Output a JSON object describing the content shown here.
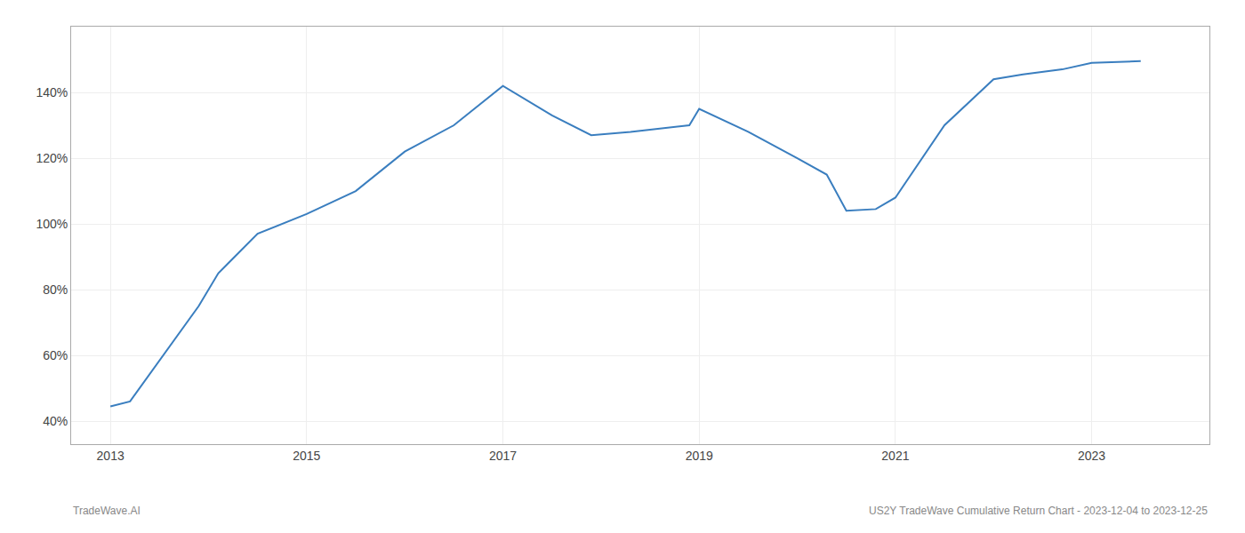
{
  "chart_data": {
    "type": "line",
    "x": [
      2013.0,
      2013.2,
      2013.9,
      2014.1,
      2014.5,
      2015.0,
      2015.5,
      2016.0,
      2016.5,
      2017.0,
      2017.5,
      2017.9,
      2018.3,
      2018.9,
      2019.0,
      2019.5,
      2020.0,
      2020.3,
      2020.5,
      2020.8,
      2021.0,
      2021.5,
      2022.0,
      2022.3,
      2022.7,
      2023.0,
      2023.5
    ],
    "values": [
      44.5,
      46,
      75,
      85,
      97,
      103,
      110,
      122,
      130,
      142,
      133,
      127,
      128,
      130,
      135,
      128,
      120,
      115,
      104,
      104.5,
      108,
      130,
      144,
      145.5,
      147,
      149,
      149.5
    ],
    "color": "#3a7ebf",
    "xlim": [
      2012.6,
      2024.2
    ],
    "ylim": [
      33,
      160
    ],
    "xticks": [
      2013,
      2015,
      2017,
      2019,
      2021,
      2023
    ],
    "yticks": [
      {
        "value": 40,
        "label": "40%"
      },
      {
        "value": 60,
        "label": "60%"
      },
      {
        "value": 80,
        "label": "80%"
      },
      {
        "value": 100,
        "label": "100%"
      },
      {
        "value": 120,
        "label": "120%"
      },
      {
        "value": 140,
        "label": "140%"
      }
    ],
    "grid": true,
    "annotations": [
      "TradeWave.AI",
      "US2Y TradeWave Cumulative Return Chart - 2023-12-04 to 2023-12-25"
    ]
  }
}
